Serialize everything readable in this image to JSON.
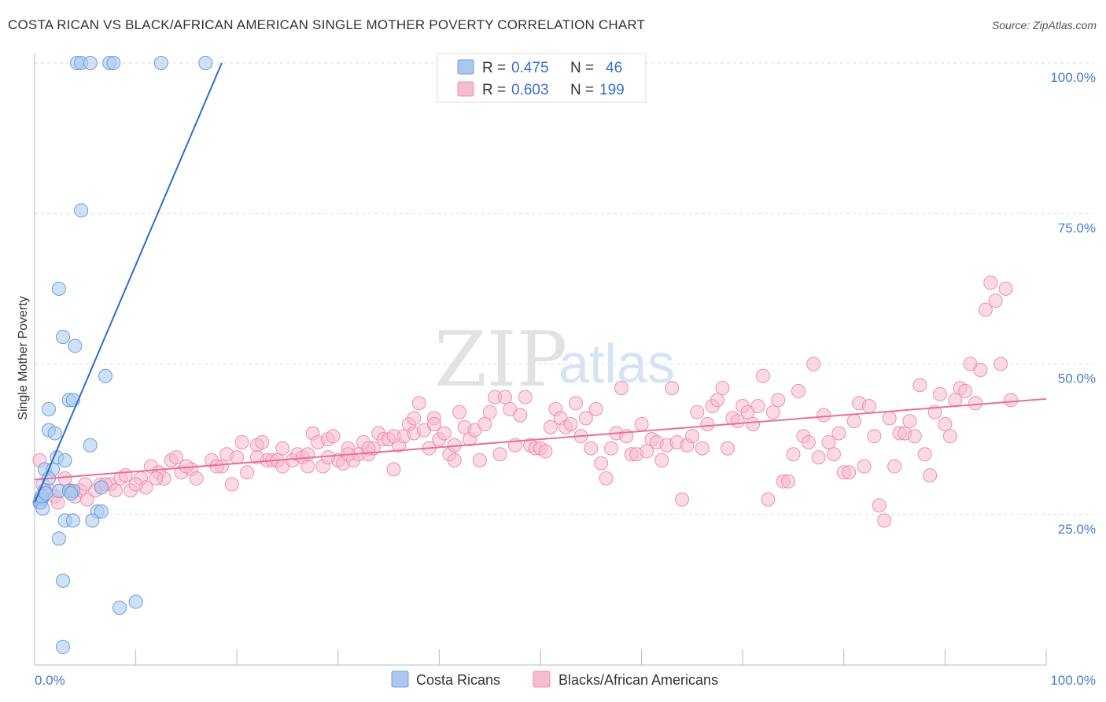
{
  "title": "COSTA RICAN VS BLACK/AFRICAN AMERICAN SINGLE MOTHER POVERTY CORRELATION CHART",
  "source": "Source: ZipAtlas.com",
  "watermark": {
    "left": "ZIP",
    "right": "atlas"
  },
  "colors": {
    "blue_fill": "#aac8ee",
    "blue_stroke": "#6a9fdc",
    "blue_line": "#2b6fd0",
    "pink_fill": "#f6bcd0",
    "pink_stroke": "#ee8fb0",
    "pink_line": "#e8709a",
    "grid": "#dddddd",
    "tick_label": "#4a7cc9"
  },
  "legend": {
    "rows": [
      {
        "r_label": "R = ",
        "r_value": "0.475",
        "n_label": "N = ",
        "n_value": "46",
        "color": "blue"
      },
      {
        "r_label": "R = ",
        "r_value": "0.603",
        "n_label": "N = ",
        "n_value": "199",
        "color": "pink"
      }
    ]
  },
  "bottom_legend": [
    "Costa Ricans",
    "Blacks/African Americans"
  ],
  "chart_data": {
    "type": "scatter",
    "title": "COSTA RICAN VS BLACK/AFRICAN AMERICAN SINGLE MOTHER POVERTY CORRELATION CHART",
    "xlabel": "",
    "ylabel": "Single Mother Poverty",
    "xlim": [
      0,
      100
    ],
    "ylim": [
      0,
      100
    ],
    "x_tick_labels": [
      "0.0%",
      "100.0%"
    ],
    "y_tick_labels": [
      "25.0%",
      "50.0%",
      "75.0%",
      "100.0%"
    ],
    "y_ticks": [
      25,
      50,
      75,
      100
    ],
    "grid": true,
    "legend_position": "top-center",
    "series": [
      {
        "name": "Costa Ricans",
        "color": "blue",
        "r": 0.475,
        "n": 46,
        "trend": {
          "x": [
            0.0,
            18.5
          ],
          "y": [
            27.0,
            100.0
          ]
        },
        "points": [
          [
            4.2,
            100
          ],
          [
            4.6,
            100
          ],
          [
            5.5,
            100
          ],
          [
            7.4,
            100
          ],
          [
            7.8,
            100
          ],
          [
            12.5,
            100
          ],
          [
            16.9,
            100
          ],
          [
            4.6,
            75.5
          ],
          [
            2.4,
            62.5
          ],
          [
            2.8,
            54.5
          ],
          [
            4.0,
            53
          ],
          [
            7.0,
            48
          ],
          [
            3.4,
            44
          ],
          [
            3.8,
            44
          ],
          [
            1.4,
            42.5
          ],
          [
            1.4,
            39
          ],
          [
            2.0,
            38.5
          ],
          [
            5.5,
            36.5
          ],
          [
            2.2,
            34.5
          ],
          [
            3.0,
            34
          ],
          [
            1.0,
            32.5
          ],
          [
            1.8,
            32.5
          ],
          [
            1.4,
            31
          ],
          [
            1.0,
            29
          ],
          [
            2.4,
            28.9
          ],
          [
            3.4,
            28.9
          ],
          [
            3.8,
            28.9
          ],
          [
            0.6,
            27.5
          ],
          [
            0.7,
            27.5
          ],
          [
            0.5,
            27
          ],
          [
            0.6,
            27
          ],
          [
            0.8,
            26
          ],
          [
            6.6,
            29.5
          ],
          [
            6.2,
            25.5
          ],
          [
            6.6,
            25.5
          ],
          [
            3.0,
            24
          ],
          [
            3.8,
            24
          ],
          [
            5.7,
            24
          ],
          [
            2.4,
            21
          ],
          [
            2.8,
            14
          ],
          [
            8.4,
            9.5
          ],
          [
            10.0,
            10.5
          ],
          [
            2.8,
            3
          ],
          [
            0.7,
            28
          ],
          [
            1.1,
            28.5
          ],
          [
            3.6,
            28.5
          ]
        ]
      },
      {
        "name": "Blacks/African Americans",
        "color": "pink",
        "r": 0.603,
        "n": 199,
        "trend": {
          "x": [
            0.0,
            100.0
          ],
          "y": [
            30.8,
            44.2
          ]
        },
        "points": [
          [
            0.5,
            34
          ],
          [
            0.8,
            30
          ],
          [
            1.5,
            29
          ],
          [
            2.0,
            28
          ],
          [
            2.3,
            27
          ],
          [
            3.5,
            29
          ],
          [
            4.0,
            28
          ],
          [
            4.5,
            29
          ],
          [
            5.2,
            27.5
          ],
          [
            6.0,
            29
          ],
          [
            6.5,
            30
          ],
          [
            7.5,
            30
          ],
          [
            8.5,
            31
          ],
          [
            9.0,
            31.5
          ],
          [
            9.5,
            29
          ],
          [
            10.5,
            31
          ],
          [
            11.0,
            29.5
          ],
          [
            11.5,
            33
          ],
          [
            12.3,
            32
          ],
          [
            12.8,
            31
          ],
          [
            13.5,
            34
          ],
          [
            14.0,
            34.5
          ],
          [
            14.5,
            32
          ],
          [
            15.5,
            32.5
          ],
          [
            16.0,
            31
          ],
          [
            17.5,
            34
          ],
          [
            18.5,
            33
          ],
          [
            19.0,
            35
          ],
          [
            19.5,
            30
          ],
          [
            20.0,
            34.5
          ],
          [
            20.5,
            37
          ],
          [
            21.0,
            32
          ],
          [
            22.0,
            36.5
          ],
          [
            22.5,
            37
          ],
          [
            23.0,
            34
          ],
          [
            23.5,
            34
          ],
          [
            24.0,
            34
          ],
          [
            24.5,
            33
          ],
          [
            25.5,
            34
          ],
          [
            26.0,
            35
          ],
          [
            26.5,
            34.5
          ],
          [
            27.0,
            33
          ],
          [
            27.5,
            38.5
          ],
          [
            28.0,
            37
          ],
          [
            28.5,
            33
          ],
          [
            29.0,
            37.5
          ],
          [
            29.5,
            38
          ],
          [
            30.0,
            34
          ],
          [
            30.5,
            33.5
          ],
          [
            31.0,
            36
          ],
          [
            31.5,
            34
          ],
          [
            32.0,
            35
          ],
          [
            32.5,
            37
          ],
          [
            33.0,
            35
          ],
          [
            33.5,
            36
          ],
          [
            34.0,
            38.5
          ],
          [
            34.5,
            37.5
          ],
          [
            35.0,
            37.5
          ],
          [
            35.5,
            32.5
          ],
          [
            36.0,
            36.5
          ],
          [
            36.5,
            38
          ],
          [
            37.0,
            40
          ],
          [
            37.5,
            38.5
          ],
          [
            38.0,
            43.5
          ],
          [
            38.5,
            39
          ],
          [
            39.0,
            36
          ],
          [
            39.5,
            41
          ],
          [
            40.0,
            37.5
          ],
          [
            40.5,
            38.5
          ],
          [
            41.0,
            35
          ],
          [
            41.5,
            34
          ],
          [
            42.0,
            42
          ],
          [
            42.5,
            39.5
          ],
          [
            43.0,
            37.5
          ],
          [
            43.5,
            39
          ],
          [
            44.0,
            34
          ],
          [
            44.5,
            40
          ],
          [
            45.0,
            42
          ],
          [
            45.5,
            44.5
          ],
          [
            46.0,
            35
          ],
          [
            46.5,
            44.5
          ],
          [
            47.0,
            42.5
          ],
          [
            47.5,
            36.5
          ],
          [
            48.0,
            41.5
          ],
          [
            48.5,
            44.5
          ],
          [
            49.0,
            36.5
          ],
          [
            49.5,
            36
          ],
          [
            50.0,
            36
          ],
          [
            50.5,
            35.5
          ],
          [
            51.0,
            39.5
          ],
          [
            51.5,
            42.5
          ],
          [
            52.0,
            41
          ],
          [
            52.5,
            39.5
          ],
          [
            53.0,
            40
          ],
          [
            53.5,
            43.5
          ],
          [
            54.0,
            38
          ],
          [
            54.5,
            41
          ],
          [
            55.0,
            36
          ],
          [
            55.5,
            42.5
          ],
          [
            56.0,
            33.5
          ],
          [
            56.5,
            31
          ],
          [
            57.0,
            36
          ],
          [
            57.5,
            38.5
          ],
          [
            58.0,
            46
          ],
          [
            58.5,
            38
          ],
          [
            59.0,
            35
          ],
          [
            59.5,
            35
          ],
          [
            60.0,
            40
          ],
          [
            60.5,
            35.5
          ],
          [
            61.0,
            37.5
          ],
          [
            61.5,
            37
          ],
          [
            62.0,
            34
          ],
          [
            62.5,
            36.5
          ],
          [
            63.0,
            46
          ],
          [
            63.5,
            37
          ],
          [
            64.0,
            27.5
          ],
          [
            64.5,
            36.5
          ],
          [
            65.0,
            38
          ],
          [
            65.5,
            42
          ],
          [
            66.0,
            36
          ],
          [
            66.5,
            40
          ],
          [
            67.0,
            43
          ],
          [
            67.5,
            44
          ],
          [
            68.0,
            46
          ],
          [
            68.5,
            36
          ],
          [
            69.0,
            41
          ],
          [
            69.5,
            40.5
          ],
          [
            70.0,
            43
          ],
          [
            70.5,
            42
          ],
          [
            71.0,
            40
          ],
          [
            71.5,
            43
          ],
          [
            72.0,
            48
          ],
          [
            72.5,
            27.5
          ],
          [
            73.0,
            42
          ],
          [
            73.5,
            44
          ],
          [
            74.0,
            30.5
          ],
          [
            74.5,
            30.5
          ],
          [
            75.0,
            35
          ],
          [
            75.5,
            45.5
          ],
          [
            76.0,
            38
          ],
          [
            76.5,
            37
          ],
          [
            77.0,
            50
          ],
          [
            77.5,
            34.5
          ],
          [
            78.0,
            41.5
          ],
          [
            78.5,
            37
          ],
          [
            79.0,
            35
          ],
          [
            79.5,
            38.5
          ],
          [
            80.0,
            32
          ],
          [
            80.5,
            32
          ],
          [
            81.0,
            40.5
          ],
          [
            81.5,
            43.5
          ],
          [
            82.0,
            33
          ],
          [
            82.5,
            43
          ],
          [
            83.0,
            38
          ],
          [
            83.5,
            26.5
          ],
          [
            84.0,
            24
          ],
          [
            84.5,
            41
          ],
          [
            85.0,
            33
          ],
          [
            85.5,
            38.5
          ],
          [
            86.0,
            38.5
          ],
          [
            86.5,
            40.5
          ],
          [
            87.0,
            38
          ],
          [
            87.5,
            46.5
          ],
          [
            88.0,
            35
          ],
          [
            88.5,
            31.5
          ],
          [
            89.0,
            42
          ],
          [
            89.5,
            45
          ],
          [
            90.0,
            40
          ],
          [
            90.5,
            38
          ],
          [
            91.0,
            44
          ],
          [
            91.5,
            46
          ],
          [
            92.0,
            45.5
          ],
          [
            92.5,
            50
          ],
          [
            93.0,
            43.5
          ],
          [
            93.5,
            49
          ],
          [
            94.0,
            59
          ],
          [
            94.5,
            63.5
          ],
          [
            95.0,
            60.5
          ],
          [
            95.5,
            50
          ],
          [
            96.0,
            62.5
          ],
          [
            96.5,
            44
          ],
          [
            3.0,
            31
          ],
          [
            5.0,
            30
          ],
          [
            7.0,
            30
          ],
          [
            8.0,
            29
          ],
          [
            10.0,
            30
          ],
          [
            12.0,
            31
          ],
          [
            15.0,
            33
          ],
          [
            18.0,
            33
          ],
          [
            22.0,
            34.5
          ],
          [
            24.5,
            36
          ],
          [
            27.0,
            35
          ],
          [
            29.0,
            34.5
          ],
          [
            31.0,
            35
          ],
          [
            33.0,
            36
          ],
          [
            35.5,
            38
          ],
          [
            37.5,
            41
          ],
          [
            39.5,
            40
          ],
          [
            41.5,
            36.5
          ]
        ]
      }
    ]
  }
}
